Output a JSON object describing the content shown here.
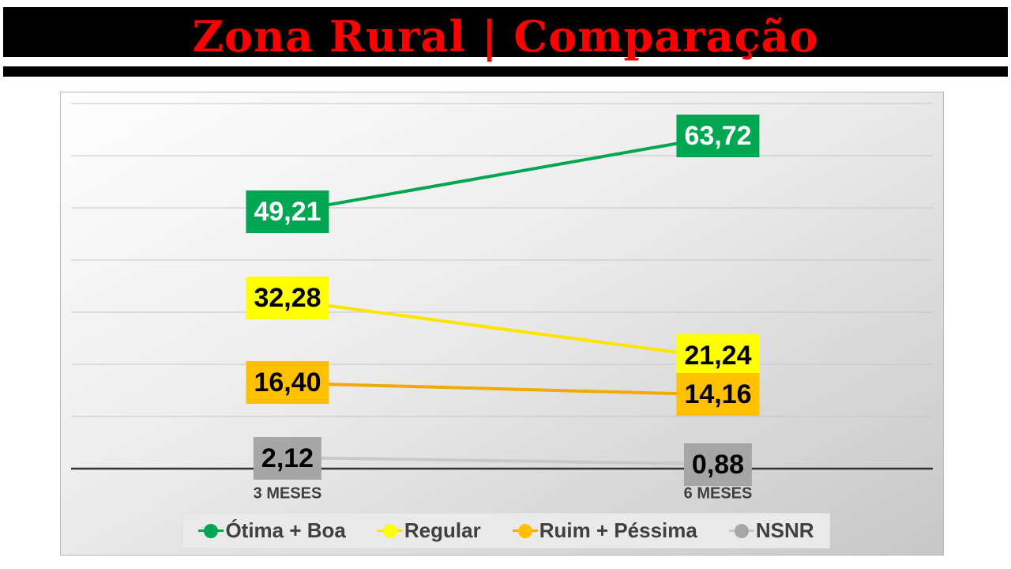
{
  "title": {
    "text": "Zona Rural | Comparação",
    "text_color": "#FF0000",
    "banner_color": "#000000"
  },
  "chart_data": {
    "type": "line",
    "title": "Zona Rural | Comparação",
    "categories": [
      "3 MESES",
      "6 MESES"
    ],
    "series": [
      {
        "name": "Ótima + Boa",
        "values": [
          49.21,
          63.72
        ],
        "value_labels": [
          "49,21",
          "63,72"
        ],
        "line_color": "#00A651",
        "marker_color": "#00A651",
        "label_bg": "#00A651",
        "label_text_color": "#FFFFFF"
      },
      {
        "name": "Regular",
        "values": [
          32.28,
          21.24
        ],
        "value_labels": [
          "32,28",
          "21,24"
        ],
        "line_color": "#FFE400",
        "marker_color": "#FFFF00",
        "label_bg": "#FFFF00",
        "label_text_color": "#000000"
      },
      {
        "name": "Ruim + Péssima",
        "values": [
          16.4,
          14.16
        ],
        "value_labels": [
          "16,40",
          "14,16"
        ],
        "line_color": "#F2A900",
        "marker_color": "#FFC000",
        "label_bg": "#FFC000",
        "label_text_color": "#000000"
      },
      {
        "name": "NSNR",
        "values": [
          2.12,
          0.88
        ],
        "value_labels": [
          "2,12",
          "0,88"
        ],
        "line_color": "#C9C9C9",
        "marker_color": "#A6A6A6",
        "label_bg": "#A6A6A6",
        "label_text_color": "#000000"
      }
    ],
    "ylim": [
      0,
      70
    ],
    "gridline_step": 10,
    "grid": true,
    "gridline_color": "#C5C5C5",
    "axis_color": "#333333",
    "axis_label_color": "#404040",
    "legend_position": "bottom",
    "legend_labels": [
      "Ótima + Boa",
      "Regular",
      "Ruim + Péssima",
      "NSNR"
    ]
  }
}
